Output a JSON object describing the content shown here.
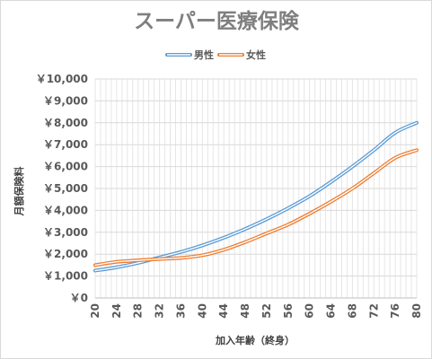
{
  "chart_data": {
    "type": "line",
    "title": "スーパー医療保険",
    "xlabel": "加入年齢（終身）",
    "ylabel": "月額保険料",
    "x": [
      20,
      24,
      28,
      32,
      36,
      40,
      44,
      48,
      52,
      56,
      60,
      64,
      68,
      72,
      76,
      80
    ],
    "x_tick_labels": [
      "20",
      "24",
      "28",
      "32",
      "36",
      "40",
      "44",
      "48",
      "52",
      "56",
      "60",
      "64",
      "68",
      "72",
      "76",
      "80"
    ],
    "xlim": [
      20,
      80
    ],
    "ylim": [
      0,
      10000
    ],
    "y_ticks": [
      0,
      1000,
      2000,
      3000,
      4000,
      5000,
      6000,
      7000,
      8000,
      9000,
      10000
    ],
    "y_tick_labels": [
      "￥0",
      "￥1,000",
      "￥2,000",
      "￥3,000",
      "￥4,000",
      "￥5,000",
      "￥6,000",
      "￥7,000",
      "￥8,000",
      "￥9,000",
      "￥10,000"
    ],
    "grid": true,
    "legend_position": "top",
    "series": [
      {
        "name": "男性",
        "color": "#5b9bd5",
        "values": [
          1250,
          1400,
          1600,
          1850,
          2100,
          2400,
          2750,
          3150,
          3600,
          4100,
          4650,
          5300,
          6000,
          6750,
          7550,
          8000
        ]
      },
      {
        "name": "女性",
        "color": "#ed7d31",
        "values": [
          1500,
          1650,
          1720,
          1780,
          1830,
          1950,
          2200,
          2550,
          2950,
          3350,
          3850,
          4400,
          5000,
          5700,
          6400,
          6750
        ]
      }
    ]
  }
}
